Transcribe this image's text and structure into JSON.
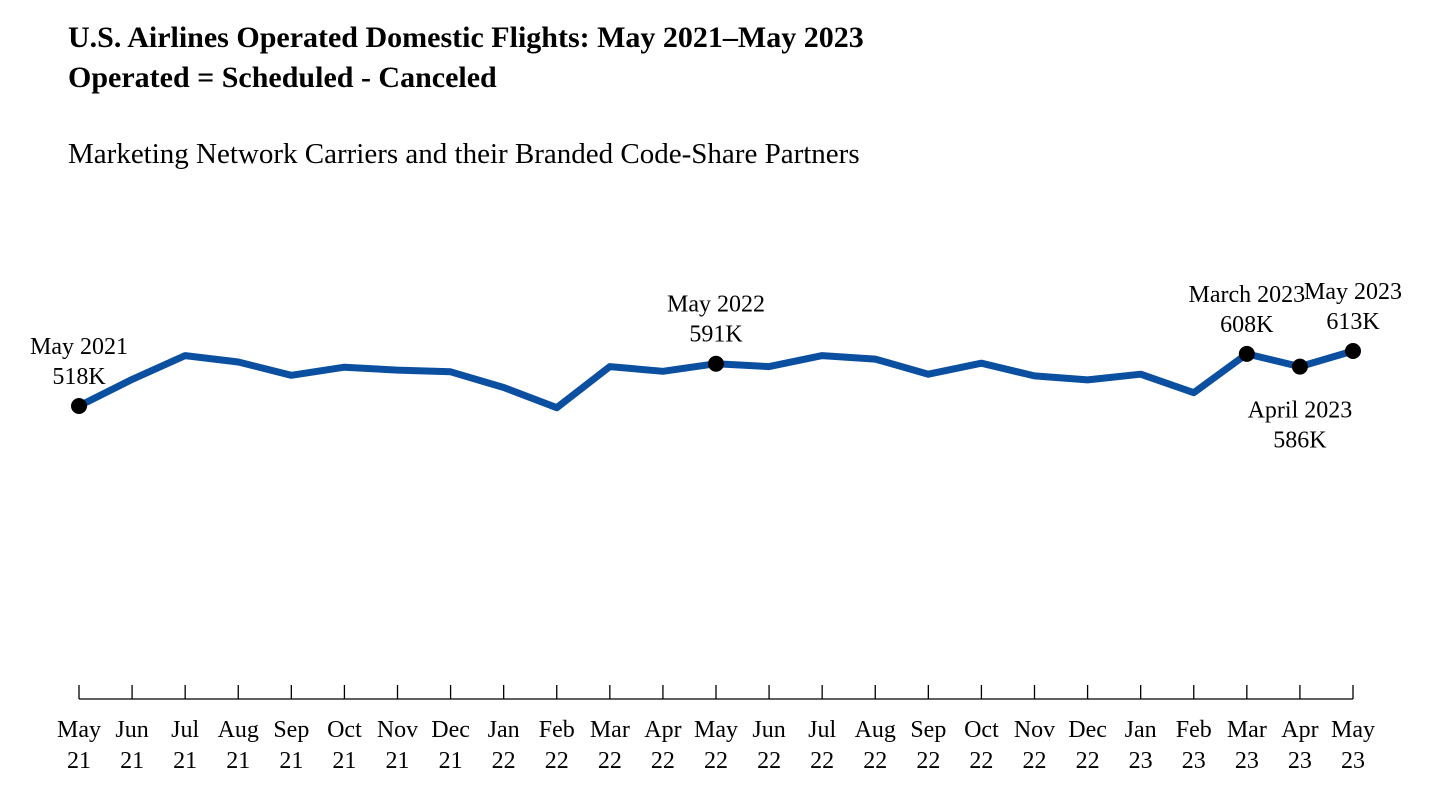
{
  "header": {
    "title_line1": "U.S. Airlines Operated Domestic Flights: May 2021–May 2023",
    "title_line2": "Operated = Scheduled - Canceled",
    "subtitle": "Marketing Network Carriers and their Branded Code-Share Partners"
  },
  "chart_data": {
    "type": "line",
    "title": "U.S. Airlines Operated Domestic Flights: May 2021–May 2023",
    "subtitle": "Operated = Scheduled - Canceled",
    "xlabel": "",
    "ylabel": "",
    "grid": false,
    "y_axis_visible": false,
    "ylim": [
      300,
      640
    ],
    "line_color": "#0b4fa0",
    "marker_color": "#000000",
    "categories": [
      [
        "May",
        "21"
      ],
      [
        "Jun",
        "21"
      ],
      [
        "Jul",
        "21"
      ],
      [
        "Aug",
        "21"
      ],
      [
        "Sep",
        "21"
      ],
      [
        "Oct",
        "21"
      ],
      [
        "Nov",
        "21"
      ],
      [
        "Dec",
        "21"
      ],
      [
        "Jan",
        "22"
      ],
      [
        "Feb",
        "22"
      ],
      [
        "Mar",
        "22"
      ],
      [
        "Apr",
        "22"
      ],
      [
        "May",
        "22"
      ],
      [
        "Jun",
        "22"
      ],
      [
        "Jul",
        "22"
      ],
      [
        "Aug",
        "22"
      ],
      [
        "Sep",
        "22"
      ],
      [
        "Oct",
        "22"
      ],
      [
        "Nov",
        "22"
      ],
      [
        "Dec",
        "22"
      ],
      [
        "Jan",
        "23"
      ],
      [
        "Feb",
        "23"
      ],
      [
        "Mar",
        "23"
      ],
      [
        "Apr",
        "23"
      ],
      [
        "May",
        "23"
      ]
    ],
    "values": [
      518,
      564,
      605,
      594,
      571,
      585,
      580,
      577,
      550,
      515,
      586,
      578,
      591,
      586,
      605,
      599,
      573,
      592,
      570,
      563,
      573,
      541,
      608,
      586,
      613
    ],
    "annotations": [
      {
        "index": 0,
        "lines": [
          "May 2021",
          "518K"
        ],
        "position": "above"
      },
      {
        "index": 12,
        "lines": [
          "May 2022",
          "591K"
        ],
        "position": "above"
      },
      {
        "index": 22,
        "lines": [
          "March 2023",
          "608K"
        ],
        "position": "above"
      },
      {
        "index": 23,
        "lines": [
          "April 2023",
          "586K"
        ],
        "position": "below"
      },
      {
        "index": 24,
        "lines": [
          "May 2023",
          "613K"
        ],
        "position": "above"
      }
    ]
  }
}
